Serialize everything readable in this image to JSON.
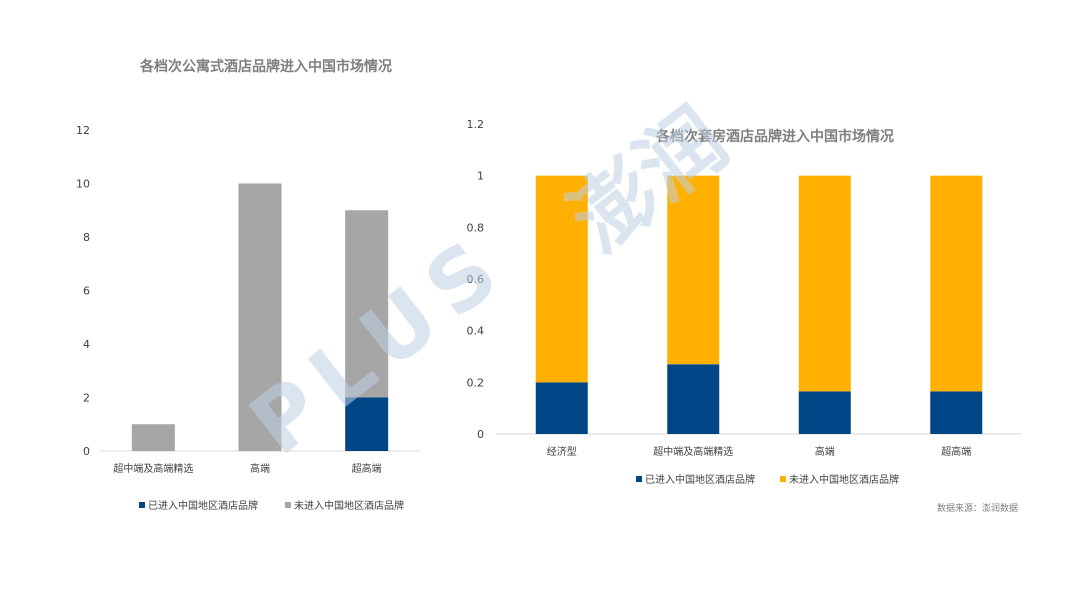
{
  "watermark": {
    "latin": "PLUS",
    "cjk": "澎润"
  },
  "source_note": "数据来源：澎润数据",
  "colors": {
    "entered": "#004586",
    "not_entered_grey": "#a6a6a6",
    "not_entered_gold": "#ffb000",
    "axis": "#d9d9d9"
  },
  "chart_data": [
    {
      "type": "bar",
      "stacked": true,
      "title": "各档次公寓式酒店品牌进入中国市场情况",
      "categories": [
        "超中端及高端精选",
        "高端",
        "超高端"
      ],
      "series": [
        {
          "name": "已进入中国地区酒店品牌",
          "values": [
            0,
            0,
            2
          ],
          "color": "#004586"
        },
        {
          "name": "未进入中国地区酒店品牌",
          "values": [
            1,
            10,
            7
          ],
          "color": "#a6a6a6"
        }
      ],
      "yticks": [
        "0",
        "2",
        "4",
        "6",
        "8",
        "10",
        "12"
      ],
      "ylim": [
        0,
        12
      ],
      "legend": "bottom",
      "grid": false
    },
    {
      "type": "bar",
      "stacked": true,
      "title": "各档次套房酒店品牌进入中国市场情况",
      "categories": [
        "经济型",
        "超中端及高端精选",
        "高端",
        "超高端"
      ],
      "series": [
        {
          "name": "已进入中国地区酒店品牌",
          "values": [
            0.2,
            0.27,
            0.165,
            0.165
          ],
          "color": "#004586"
        },
        {
          "name": "未进入中国地区酒店品牌",
          "values": [
            0.8,
            0.73,
            0.835,
            0.835
          ],
          "color": "#ffb000"
        }
      ],
      "yticks": [
        "0",
        "0.2",
        "0.4",
        "0.6",
        "0.8",
        "1",
        "1.2"
      ],
      "ylim": [
        0,
        1.2
      ],
      "legend": "bottom",
      "grid": false
    }
  ]
}
